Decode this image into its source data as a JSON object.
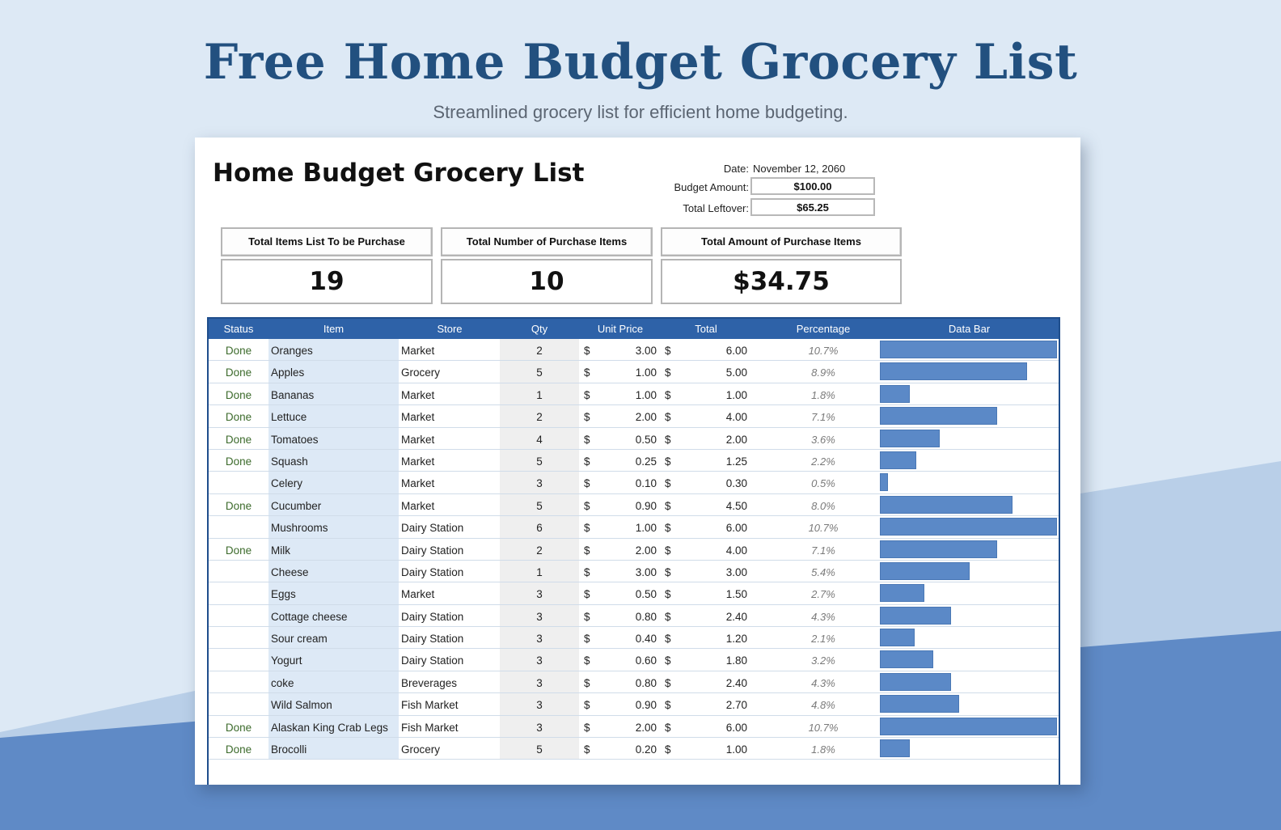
{
  "page": {
    "title": "Free Home Budget Grocery List",
    "subtitle": "Streamlined grocery list for efficient home budgeting."
  },
  "colors": {
    "brand_title": "#22507f",
    "table_header": "#2e62a8",
    "data_bar": "#5b89c7",
    "status_done": "#3d6b2c",
    "item_column_fill": "#dde9f6"
  },
  "sheet": {
    "title": "Home Budget Grocery List",
    "date_label": "Date:",
    "date_value": "November 12, 2060",
    "budget_label": "Budget Amount:",
    "budget_value": "$100.00",
    "leftover_label": "Total Leftover:",
    "leftover_value": "$65.25"
  },
  "summary": [
    {
      "label": "Total Items List To be Purchase",
      "value": "19"
    },
    {
      "label": "Total Number of Purchase Items",
      "value": "10"
    },
    {
      "label": "Total Amount of Purchase Items",
      "value": "$34.75"
    }
  ],
  "table": {
    "headers": [
      "Status",
      "Item",
      "Store",
      "Qty",
      "Unit Price",
      "Total",
      "Percentage",
      "Data Bar"
    ],
    "currency_symbol": "$",
    "rows": [
      {
        "status": "Done",
        "item": "Oranges",
        "store": "Market",
        "qty": "2",
        "unit": "3.00",
        "total": "6.00",
        "pct": "10.7%",
        "pct_value": 10.7
      },
      {
        "status": "Done",
        "item": "Apples",
        "store": "Grocery",
        "qty": "5",
        "unit": "1.00",
        "total": "5.00",
        "pct": "8.9%",
        "pct_value": 8.9
      },
      {
        "status": "Done",
        "item": "Bananas",
        "store": "Market",
        "qty": "1",
        "unit": "1.00",
        "total": "1.00",
        "pct": "1.8%",
        "pct_value": 1.8
      },
      {
        "status": "Done",
        "item": "Lettuce",
        "store": "Market",
        "qty": "2",
        "unit": "2.00",
        "total": "4.00",
        "pct": "7.1%",
        "pct_value": 7.1
      },
      {
        "status": "Done",
        "item": "Tomatoes",
        "store": "Market",
        "qty": "4",
        "unit": "0.50",
        "total": "2.00",
        "pct": "3.6%",
        "pct_value": 3.6
      },
      {
        "status": "Done",
        "item": "Squash",
        "store": "Market",
        "qty": "5",
        "unit": "0.25",
        "total": "1.25",
        "pct": "2.2%",
        "pct_value": 2.2
      },
      {
        "status": "",
        "item": "Celery",
        "store": "Market",
        "qty": "3",
        "unit": "0.10",
        "total": "0.30",
        "pct": "0.5%",
        "pct_value": 0.5
      },
      {
        "status": "Done",
        "item": "Cucumber",
        "store": "Market",
        "qty": "5",
        "unit": "0.90",
        "total": "4.50",
        "pct": "8.0%",
        "pct_value": 8.0
      },
      {
        "status": "",
        "item": "Mushrooms",
        "store": "Dairy Station",
        "qty": "6",
        "unit": "1.00",
        "total": "6.00",
        "pct": "10.7%",
        "pct_value": 10.7
      },
      {
        "status": "Done",
        "item": "Milk",
        "store": "Dairy Station",
        "qty": "2",
        "unit": "2.00",
        "total": "4.00",
        "pct": "7.1%",
        "pct_value": 7.1
      },
      {
        "status": "",
        "item": "Cheese",
        "store": "Dairy Station",
        "qty": "1",
        "unit": "3.00",
        "total": "3.00",
        "pct": "5.4%",
        "pct_value": 5.4
      },
      {
        "status": "",
        "item": "Eggs",
        "store": "Market",
        "qty": "3",
        "unit": "0.50",
        "total": "1.50",
        "pct": "2.7%",
        "pct_value": 2.7
      },
      {
        "status": "",
        "item": "Cottage cheese",
        "store": "Dairy Station",
        "qty": "3",
        "unit": "0.80",
        "total": "2.40",
        "pct": "4.3%",
        "pct_value": 4.3
      },
      {
        "status": "",
        "item": "Sour cream",
        "store": "Dairy Station",
        "qty": "3",
        "unit": "0.40",
        "total": "1.20",
        "pct": "2.1%",
        "pct_value": 2.1
      },
      {
        "status": "",
        "item": "Yogurt",
        "store": "Dairy Station",
        "qty": "3",
        "unit": "0.60",
        "total": "1.80",
        "pct": "3.2%",
        "pct_value": 3.2
      },
      {
        "status": "",
        "item": "coke",
        "store": "Breverages",
        "qty": "3",
        "unit": "0.80",
        "total": "2.40",
        "pct": "4.3%",
        "pct_value": 4.3
      },
      {
        "status": "",
        "item": "Wild Salmon",
        "store": "Fish Market",
        "qty": "3",
        "unit": "0.90",
        "total": "2.70",
        "pct": "4.8%",
        "pct_value": 4.8
      },
      {
        "status": "Done",
        "item": "Alaskan King Crab Legs",
        "store": "Fish Market",
        "qty": "3",
        "unit": "2.00",
        "total": "6.00",
        "pct": "10.7%",
        "pct_value": 10.7
      },
      {
        "status": "Done",
        "item": "Brocolli",
        "store": "Grocery",
        "qty": "5",
        "unit": "0.20",
        "total": "1.00",
        "pct": "1.8%",
        "pct_value": 1.8
      }
    ]
  }
}
